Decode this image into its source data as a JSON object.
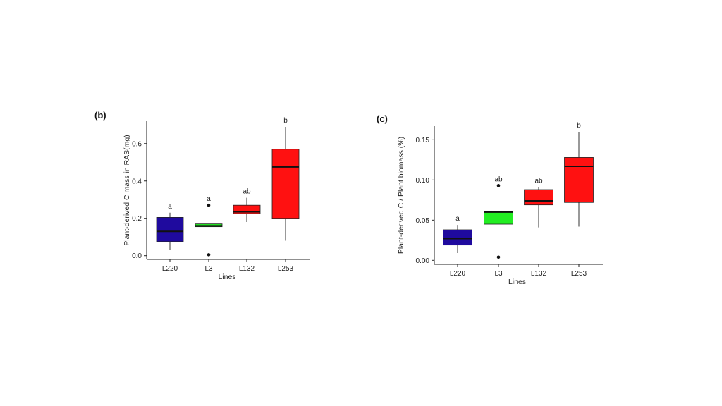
{
  "chart_data": [
    {
      "panel": "(b)",
      "type": "box",
      "xlabel": "Lines",
      "ylabel": "Plant-derived C mass in RAS(mg)",
      "ylim": [
        -0.02,
        0.72
      ],
      "yticks": [
        "0.0",
        "0.2",
        "0.4",
        "0.6"
      ],
      "ytick_values": [
        0.0,
        0.2,
        0.4,
        0.6
      ],
      "categories": [
        "L220",
        "L3",
        "L132",
        "L253"
      ],
      "colors": [
        "#1f0a9e",
        "#22ee22",
        "#ff1111",
        "#ff1111"
      ],
      "boxes": [
        {
          "whisker_low": 0.03,
          "q1": 0.075,
          "median": 0.13,
          "q3": 0.205,
          "whisker_high": 0.23,
          "outliers": [],
          "sig": "a"
        },
        {
          "whisker_low": 0.155,
          "q1": 0.155,
          "median": 0.16,
          "q3": 0.17,
          "whisker_high": 0.17,
          "outliers": [
            0.27,
            0.005
          ],
          "sig": "a"
        },
        {
          "whisker_low": 0.18,
          "q1": 0.225,
          "median": 0.235,
          "q3": 0.27,
          "whisker_high": 0.31,
          "outliers": [],
          "sig": "ab"
        },
        {
          "whisker_low": 0.08,
          "q1": 0.2,
          "median": 0.475,
          "q3": 0.57,
          "whisker_high": 0.69,
          "outliers": [],
          "sig": "b"
        }
      ]
    },
    {
      "panel": "(c)",
      "type": "box",
      "xlabel": "Lines",
      "ylabel": "Plant-derived C / Plant biomass (%)",
      "ylim": [
        -0.005,
        0.167
      ],
      "yticks": [
        "0.00",
        "0.05",
        "0.10",
        "0.15"
      ],
      "ytick_values": [
        0.0,
        0.05,
        0.1,
        0.15
      ],
      "categories": [
        "L220",
        "L3",
        "L132",
        "L253"
      ],
      "colors": [
        "#1f0a9e",
        "#22ee22",
        "#ff1111",
        "#ff1111"
      ],
      "boxes": [
        {
          "whisker_low": 0.009,
          "q1": 0.019,
          "median": 0.027,
          "q3": 0.038,
          "whisker_high": 0.044,
          "outliers": [],
          "sig": "a"
        },
        {
          "whisker_low": 0.045,
          "q1": 0.045,
          "median": 0.06,
          "q3": 0.061,
          "whisker_high": 0.061,
          "outliers": [
            0.093,
            0.004
          ],
          "sig": "ab"
        },
        {
          "whisker_low": 0.041,
          "q1": 0.069,
          "median": 0.074,
          "q3": 0.088,
          "whisker_high": 0.091,
          "outliers": [],
          "sig": "ab"
        },
        {
          "whisker_low": 0.042,
          "q1": 0.072,
          "median": 0.117,
          "q3": 0.128,
          "whisker_high": 0.16,
          "outliers": [],
          "sig": "b"
        }
      ]
    }
  ]
}
